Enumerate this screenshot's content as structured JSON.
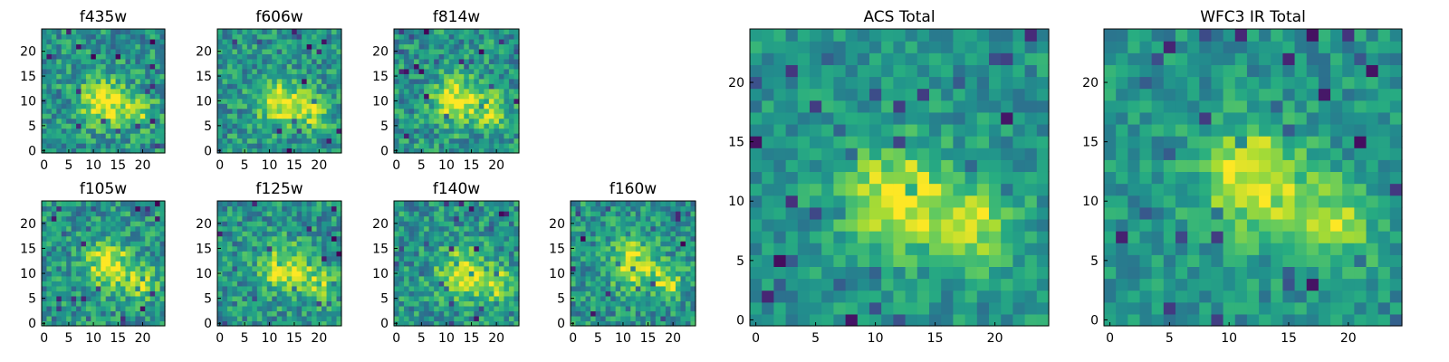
{
  "chart_data": [
    {
      "type": "heatmap",
      "title": "f435w",
      "xticks": [
        "0",
        "5",
        "10",
        "15",
        "20"
      ],
      "yticks": [
        "0",
        "5",
        "10",
        "15",
        "20"
      ],
      "xlim": [
        0,
        25
      ],
      "ylim": [
        0,
        25
      ],
      "grid_size": [
        25,
        25
      ],
      "colormap": "viridis",
      "peak_x": [
        12,
        19
      ],
      "peak_y": [
        10,
        8
      ]
    },
    {
      "type": "heatmap",
      "title": "f606w",
      "xticks": [
        "0",
        "5",
        "10",
        "15",
        "20"
      ],
      "yticks": [
        "0",
        "5",
        "10",
        "15",
        "20"
      ],
      "xlim": [
        0,
        25
      ],
      "ylim": [
        0,
        25
      ],
      "grid_size": [
        25,
        25
      ],
      "colormap": "viridis",
      "peak_x": [
        12,
        19
      ],
      "peak_y": [
        10,
        8
      ]
    },
    {
      "type": "heatmap",
      "title": "f814w",
      "xticks": [
        "0",
        "5",
        "10",
        "15",
        "20"
      ],
      "yticks": [
        "0",
        "5",
        "10",
        "15",
        "20"
      ],
      "xlim": [
        0,
        25
      ],
      "ylim": [
        0,
        25
      ],
      "grid_size": [
        25,
        25
      ],
      "colormap": "viridis",
      "peak_x": [
        12,
        19
      ],
      "peak_y": [
        10,
        8
      ]
    },
    {
      "type": "heatmap",
      "title": "f105w",
      "xticks": [
        "0",
        "5",
        "10",
        "15",
        "20"
      ],
      "yticks": [
        "0",
        "5",
        "10",
        "15",
        "20"
      ],
      "xlim": [
        0,
        25
      ],
      "ylim": [
        0,
        25
      ],
      "grid_size": [
        25,
        25
      ],
      "colormap": "viridis",
      "peak_x": [
        13,
        20
      ],
      "peak_y": [
        12,
        8
      ]
    },
    {
      "type": "heatmap",
      "title": "f125w",
      "xticks": [
        "0",
        "5",
        "10",
        "15",
        "20"
      ],
      "yticks": [
        "0",
        "5",
        "10",
        "15",
        "20"
      ],
      "xlim": [
        0,
        25
      ],
      "ylim": [
        0,
        25
      ],
      "grid_size": [
        25,
        25
      ],
      "colormap": "viridis",
      "peak_x": [
        13,
        20
      ],
      "peak_y": [
        11,
        8
      ]
    },
    {
      "type": "heatmap",
      "title": "f140w",
      "xticks": [
        "0",
        "5",
        "10",
        "15",
        "20"
      ],
      "yticks": [
        "0",
        "5",
        "10",
        "15",
        "20"
      ],
      "xlim": [
        0,
        25
      ],
      "ylim": [
        0,
        25
      ],
      "grid_size": [
        25,
        25
      ],
      "colormap": "viridis",
      "peak_x": [
        13,
        20
      ],
      "peak_y": [
        10,
        8
      ]
    },
    {
      "type": "heatmap",
      "title": "f160w",
      "xticks": [
        "0",
        "5",
        "10",
        "15",
        "20"
      ],
      "yticks": [
        "0",
        "5",
        "10",
        "15",
        "20"
      ],
      "xlim": [
        0,
        25
      ],
      "ylim": [
        0,
        25
      ],
      "grid_size": [
        25,
        25
      ],
      "colormap": "viridis",
      "peak_x": [
        12,
        19
      ],
      "peak_y": [
        12,
        8
      ]
    },
    {
      "type": "heatmap",
      "title": "ACS Total",
      "xticks": [
        "0",
        "5",
        "10",
        "15",
        "20"
      ],
      "yticks": [
        "0",
        "5",
        "10",
        "15",
        "20"
      ],
      "xlim": [
        0,
        25
      ],
      "ylim": [
        0,
        25
      ],
      "grid_size": [
        25,
        25
      ],
      "colormap": "viridis",
      "peak_x": [
        12,
        19
      ],
      "peak_y": [
        10,
        8
      ]
    },
    {
      "type": "heatmap",
      "title": "WFC3 IR Total",
      "xticks": [
        "0",
        "5",
        "10",
        "15",
        "20"
      ],
      "yticks": [
        "0",
        "5",
        "10",
        "15",
        "20"
      ],
      "xlim": [
        0,
        25
      ],
      "ylim": [
        0,
        25
      ],
      "grid_size": [
        25,
        25
      ],
      "colormap": "viridis",
      "peak_x": [
        12,
        19
      ],
      "peak_y": [
        12,
        8
      ]
    }
  ]
}
